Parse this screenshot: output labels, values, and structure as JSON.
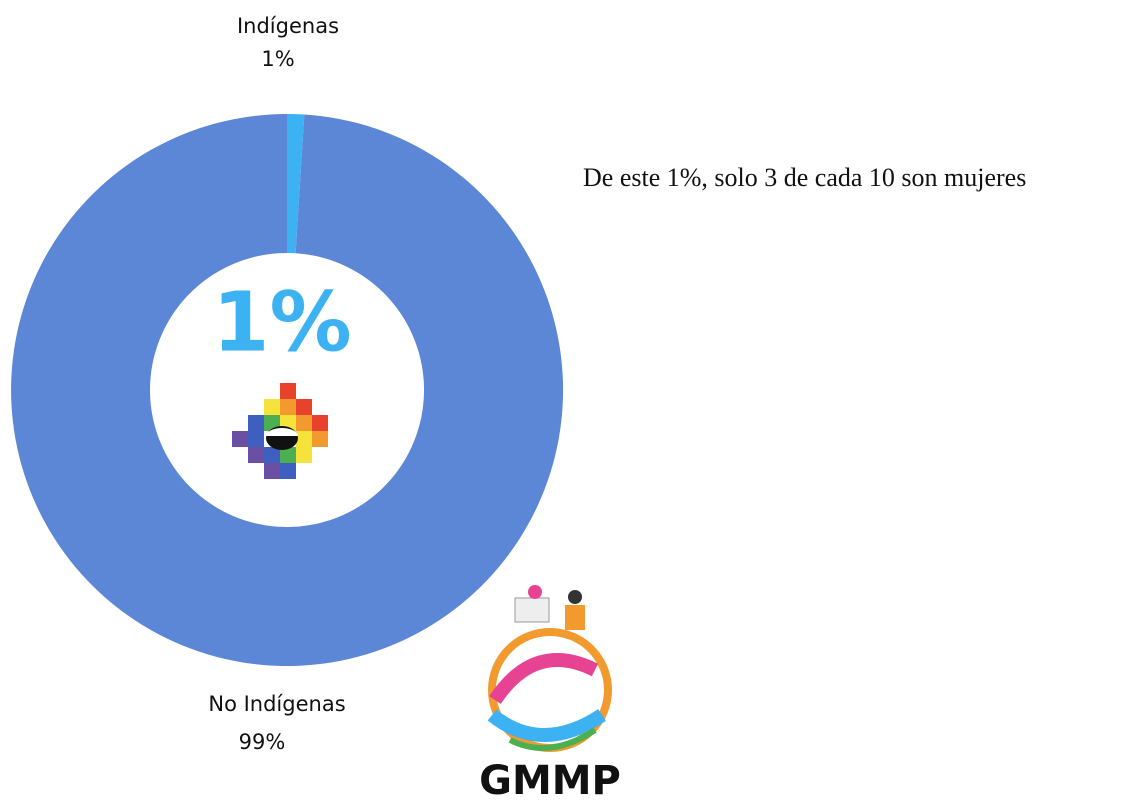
{
  "chart_data": {
    "type": "pie",
    "categories": [
      "Indígenas",
      "No Indígenas"
    ],
    "values": [
      1,
      99
    ],
    "value_labels": [
      "1%",
      "99%"
    ],
    "colors": [
      "#3db2f2",
      "#5c87d6"
    ],
    "center_label": "1%",
    "annotation": "De este 1%, solo 3 de cada 10 son mujeres",
    "logo_text": "GMMP"
  }
}
